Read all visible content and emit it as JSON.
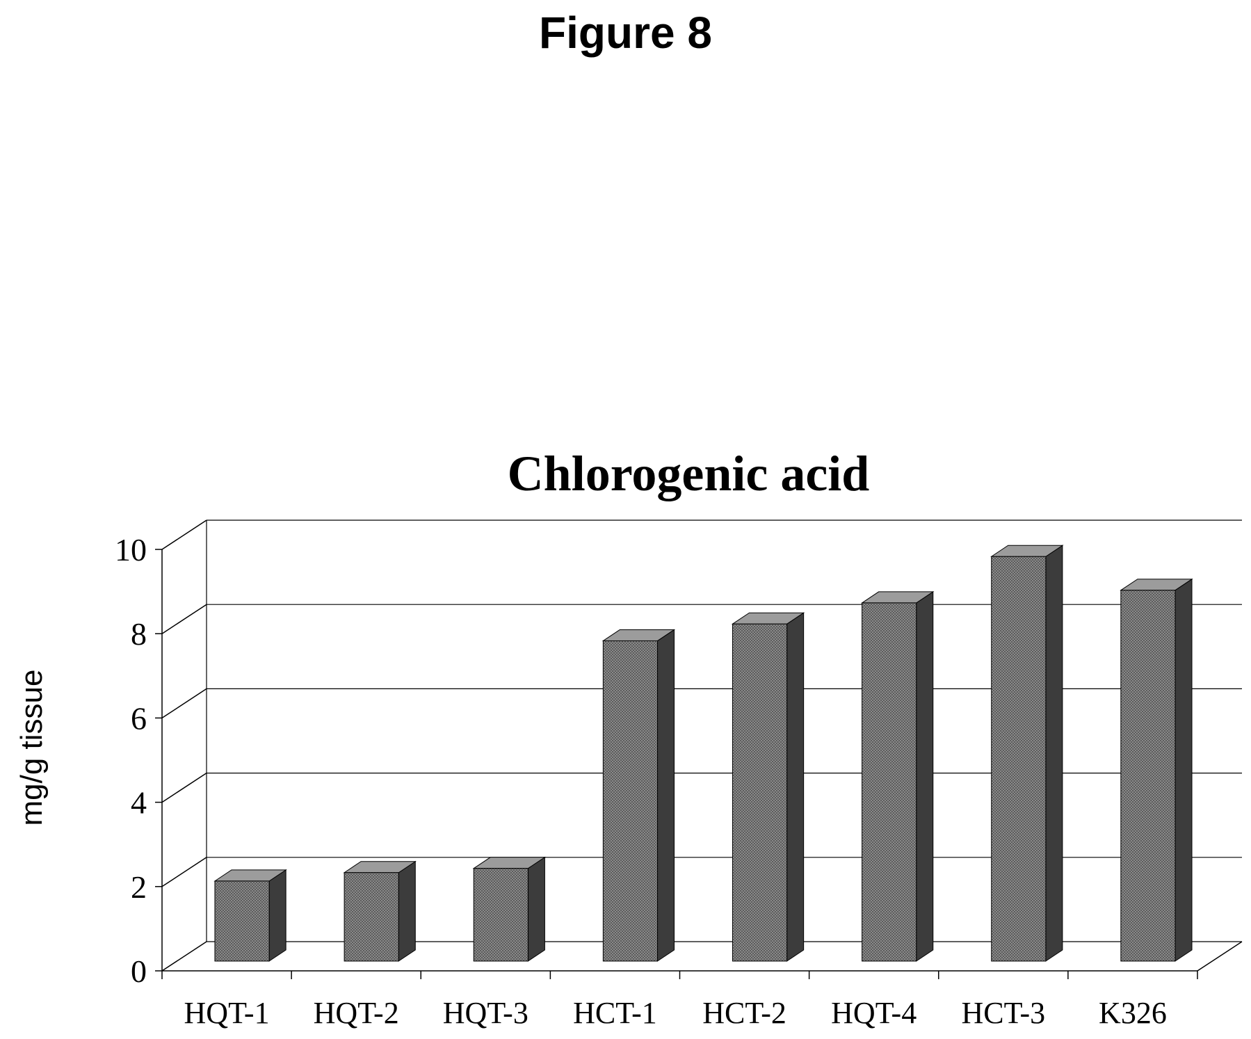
{
  "figure_label": "Figure 8",
  "colors": {
    "bar_front": "#7a7a7a",
    "bar_top": "#9c9c9c",
    "bar_side": "#3c3c3c",
    "grid": "#000000"
  },
  "chart_data": {
    "type": "bar",
    "title": "Chlorogenic acid",
    "xlabel": "",
    "ylabel": "mg/g tissue",
    "categories": [
      "HQT-1",
      "HQT-2",
      "HQT-3",
      "HCT-1",
      "HCT-2",
      "HQT-4",
      "HCT-3",
      "K326"
    ],
    "values": [
      1.9,
      2.1,
      2.2,
      7.6,
      8.0,
      8.5,
      9.6,
      8.8
    ],
    "ylim": [
      0,
      10
    ],
    "yticks": [
      "0",
      "2",
      "4",
      "6",
      "8",
      "10"
    ],
    "grid": true,
    "legend": "none",
    "style": "3d"
  }
}
